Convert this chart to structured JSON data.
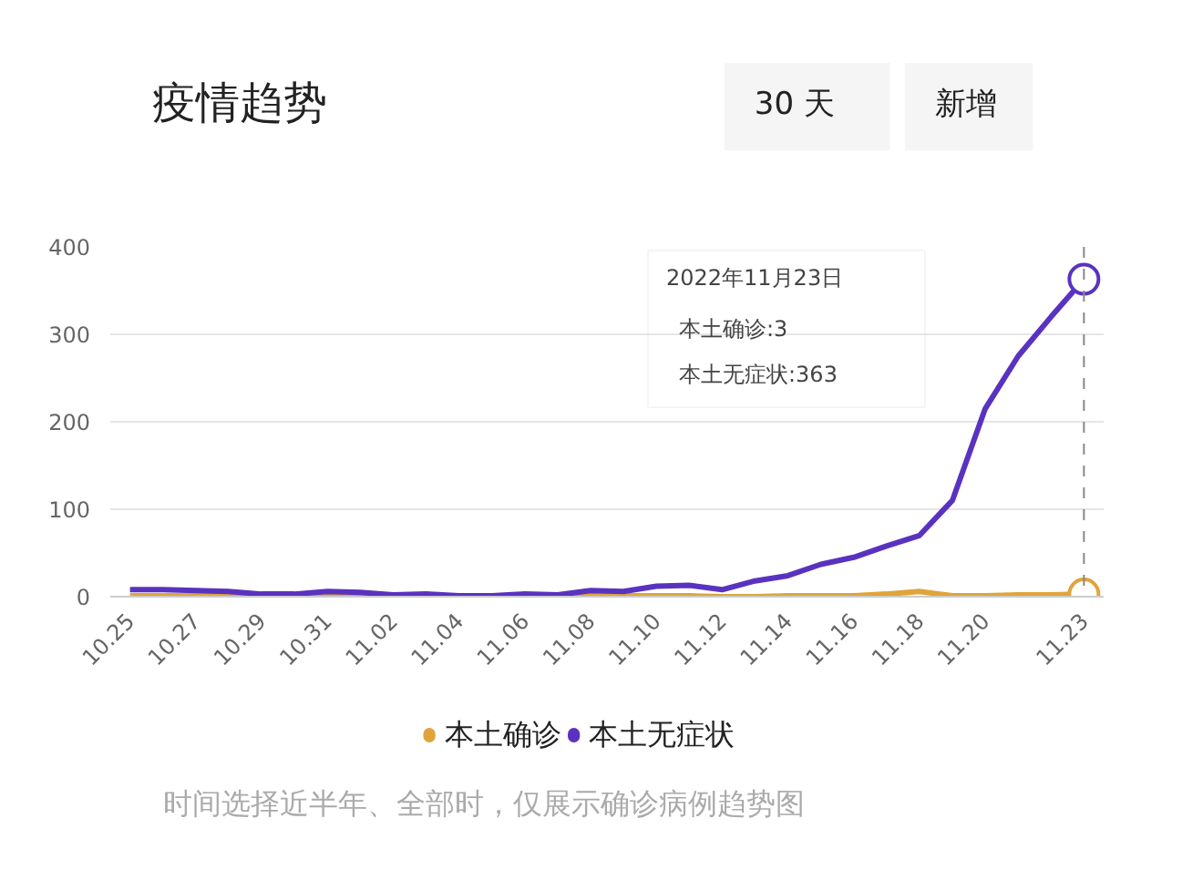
{
  "chart_data": {
    "type": "line",
    "title": "疫情趋势",
    "categories": [
      "10.25",
      null,
      "10.27",
      null,
      "10.29",
      null,
      "10.31",
      null,
      "11.02",
      null,
      "11.04",
      null,
      "11.06",
      null,
      "11.08",
      null,
      "11.10",
      null,
      "11.12",
      null,
      "11.14",
      null,
      "11.16",
      null,
      "11.18",
      null,
      "11.20",
      null,
      null,
      "11.23"
    ],
    "series": [
      {
        "name": "本土确诊",
        "color": "#e0a43a",
        "values": [
          1,
          1,
          1,
          1,
          0,
          0,
          1,
          1,
          0,
          0,
          0,
          0,
          0,
          0,
          1,
          1,
          1,
          1,
          0,
          0,
          1,
          1,
          1,
          3,
          6,
          1,
          1,
          2,
          2,
          3
        ]
      },
      {
        "name": "本土无症状",
        "color": "#5a32c0",
        "values": [
          8,
          8,
          7,
          6,
          3,
          3,
          6,
          5,
          2,
          3,
          1,
          1,
          3,
          2,
          7,
          6,
          12,
          13,
          8,
          18,
          24,
          37,
          45,
          58,
          70,
          110,
          215,
          275,
          320,
          363
        ]
      }
    ],
    "ylim": [
      0,
      400
    ],
    "yticks": [
      0,
      100,
      200,
      300,
      400
    ],
    "grid": "y",
    "legend": "bottom",
    "line_style": "solid",
    "ref_lines": [
      {
        "axis": "x",
        "value": "11.23",
        "line_style": "dashed",
        "color": "#888888"
      }
    ],
    "annotations": [
      "30 天",
      "新增",
      "2022年11月23日",
      "本土确诊:3",
      "本土无症状:363",
      "时间选择近半年、全部时，仅展示确诊病例趋势图"
    ]
  }
}
